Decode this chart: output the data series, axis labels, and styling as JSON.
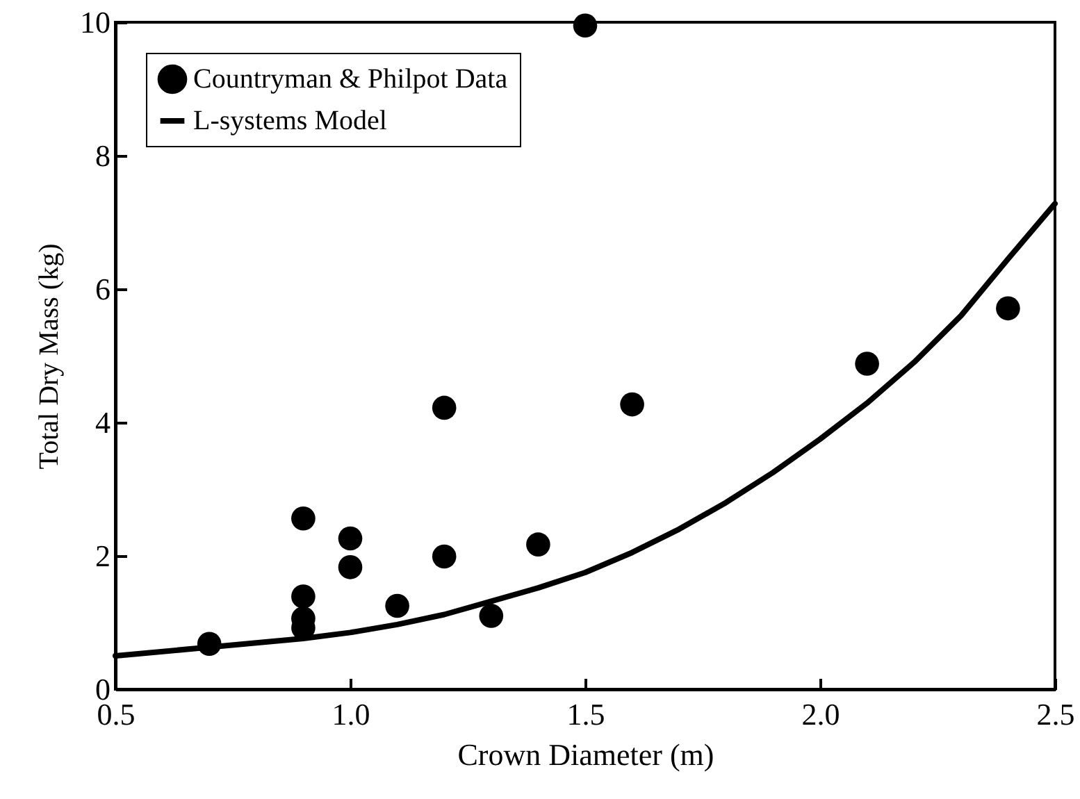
{
  "chart_data": {
    "type": "scatter",
    "xlabel": "Crown Diameter (m)",
    "ylabel": "Total Dry Mass (kg)",
    "xlim": [
      0.5,
      2.5
    ],
    "xticks": [
      "0.5",
      {
        "value": 1,
        "label": "1.0"
      },
      "1.5",
      {
        "value": 2,
        "label": "2.0"
      },
      "2.5"
    ],
    "ylim": [
      0,
      10
    ],
    "yticks": [
      0,
      2,
      4,
      6,
      8,
      10
    ],
    "grid": false,
    "legend": "top left",
    "series": [
      {
        "name": "Countryman & Philpot Data",
        "color": "#000000",
        "marker": "circle",
        "x": [
          0.7,
          0.9,
          0.9,
          0.9,
          0.9,
          1.0,
          1.0,
          1.1,
          1.2,
          1.2,
          1.3,
          1.4,
          1.5,
          1.6,
          2.1,
          2.4
        ],
        "values": [
          0.68,
          2.56,
          1.39,
          1.06,
          0.92,
          2.26,
          1.83,
          1.25,
          1.99,
          4.22,
          1.1,
          2.17,
          9.95,
          4.27,
          4.88,
          5.71
        ]
      },
      {
        "name": "L-systems Model",
        "type": "line",
        "color": "#000000",
        "line_style": "solid",
        "x": [
          0.5,
          0.7,
          0.9,
          1.0,
          1.1,
          1.2,
          1.3,
          1.4,
          1.5,
          1.6,
          1.7,
          1.8,
          1.9,
          2.0,
          2.1,
          2.2,
          2.3,
          2.4,
          2.5
        ],
        "values": [
          0.5,
          0.63,
          0.76,
          0.85,
          0.97,
          1.12,
          1.32,
          1.52,
          1.75,
          2.05,
          2.4,
          2.8,
          3.25,
          3.75,
          4.29,
          4.9,
          5.6,
          6.45,
          7.28
        ]
      }
    ]
  }
}
